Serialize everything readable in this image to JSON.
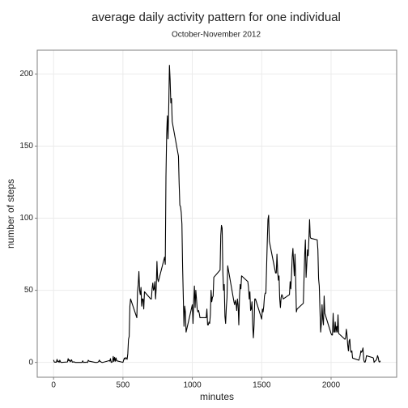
{
  "chart_data": {
    "type": "line",
    "title": "average daily activity pattern for one individual",
    "subtitle": "October-November 2012",
    "xlabel": "minutes",
    "ylabel": "number of steps",
    "x": [
      0,
      5,
      10,
      15,
      20,
      25,
      30,
      35,
      40,
      45,
      50,
      55,
      100,
      105,
      110,
      115,
      120,
      125,
      130,
      135,
      140,
      145,
      150,
      155,
      200,
      205,
      210,
      215,
      220,
      225,
      230,
      235,
      240,
      245,
      250,
      255,
      300,
      305,
      310,
      315,
      320,
      325,
      330,
      335,
      340,
      345,
      350,
      355,
      400,
      405,
      410,
      415,
      420,
      425,
      430,
      435,
      440,
      445,
      450,
      455,
      500,
      505,
      510,
      515,
      520,
      525,
      530,
      535,
      540,
      545,
      550,
      555,
      600,
      605,
      610,
      615,
      620,
      625,
      630,
      635,
      640,
      645,
      650,
      655,
      700,
      705,
      710,
      715,
      720,
      725,
      730,
      735,
      740,
      745,
      750,
      755,
      800,
      805,
      810,
      815,
      820,
      825,
      830,
      835,
      840,
      845,
      850,
      855,
      900,
      905,
      910,
      915,
      920,
      925,
      930,
      935,
      940,
      945,
      950,
      955,
      1000,
      1005,
      1010,
      1015,
      1020,
      1025,
      1030,
      1035,
      1040,
      1045,
      1050,
      1055,
      1100,
      1105,
      1110,
      1115,
      1120,
      1125,
      1130,
      1135,
      1140,
      1145,
      1150,
      1155,
      1200,
      1205,
      1210,
      1215,
      1220,
      1225,
      1230,
      1235,
      1240,
      1245,
      1250,
      1255,
      1300,
      1305,
      1310,
      1315,
      1320,
      1325,
      1330,
      1335,
      1340,
      1345,
      1350,
      1355,
      1400,
      1405,
      1410,
      1415,
      1420,
      1425,
      1430,
      1435,
      1440,
      1445,
      1450,
      1455,
      1500,
      1505,
      1510,
      1515,
      1520,
      1525,
      1530,
      1535,
      1540,
      1545,
      1550,
      1555,
      1600,
      1605,
      1610,
      1615,
      1620,
      1625,
      1630,
      1635,
      1640,
      1645,
      1650,
      1655,
      1700,
      1705,
      1710,
      1715,
      1720,
      1725,
      1730,
      1735,
      1740,
      1745,
      1750,
      1755,
      1800,
      1805,
      1810,
      1815,
      1820,
      1825,
      1830,
      1835,
      1840,
      1845,
      1850,
      1855,
      1900,
      1905,
      1910,
      1915,
      1920,
      1925,
      1930,
      1935,
      1940,
      1945,
      1950,
      1955,
      2000,
      2005,
      2010,
      2015,
      2020,
      2025,
      2030,
      2035,
      2040,
      2045,
      2050,
      2055,
      2100,
      2105,
      2110,
      2115,
      2120,
      2125,
      2130,
      2135,
      2140,
      2145,
      2150,
      2155,
      2200,
      2205,
      2210,
      2215,
      2220,
      2225,
      2230,
      2235,
      2240,
      2245,
      2250,
      2255,
      2300,
      2305,
      2310,
      2315,
      2320,
      2325,
      2330,
      2335,
      2340,
      2345,
      2350,
      2355
    ],
    "series": [
      {
        "color": "#000000",
        "values": [
          1.7,
          0.3,
          0.1,
          0.2,
          0.1,
          2.1,
          0.5,
          0.9,
          0,
          1.5,
          0.3,
          0,
          0.3,
          2.6,
          1.1,
          1.8,
          0.4,
          1.1,
          1.8,
          0.2,
          0.2,
          0.4,
          0.3,
          0,
          0,
          0,
          1.1,
          0,
          0,
          0.1,
          0,
          0.2,
          0,
          0,
          1.5,
          0.9,
          0,
          0,
          0,
          0,
          0.2,
          0.6,
          1.6,
          0.6,
          0.5,
          0.1,
          0,
          0,
          1.2,
          0.9,
          2.6,
          0,
          0.3,
          0.3,
          4.1,
          0.7,
          3.5,
          0.8,
          3.1,
          1.1,
          0,
          1.6,
          3,
          2.2,
          3.3,
          3,
          2.1,
          6,
          16,
          18,
          39,
          44,
          31,
          49,
          54,
          63,
          50,
          47,
          52,
          39,
          44,
          44,
          37,
          49,
          44,
          44,
          51,
          55,
          50,
          51,
          56,
          44,
          52,
          70,
          58,
          56,
          73,
          68,
          129,
          158,
          171,
          155,
          177,
          206,
          196,
          180,
          183,
          167,
          143,
          124,
          109,
          108,
          104,
          96,
          66,
          45,
          25,
          39,
          35,
          21,
          40,
          27,
          42,
          53,
          38,
          50,
          44,
          37,
          35,
          36,
          34,
          31,
          31,
          37,
          26,
          26,
          28,
          27,
          33,
          50,
          42,
          45,
          46,
          59,
          64,
          88,
          95,
          93,
          63,
          50,
          54,
          32,
          27,
          38,
          45,
          67,
          42,
          40,
          43,
          41,
          36,
          44,
          40,
          26,
          46,
          54,
          51,
          60,
          56,
          52,
          44,
          49,
          36,
          37,
          42,
          26,
          17,
          26,
          44,
          44,
          30,
          37,
          35,
          39,
          46,
          48,
          48,
          65,
          83,
          99,
          102,
          84,
          62,
          62,
          75,
          63,
          57,
          60,
          44,
          38,
          45,
          47,
          46,
          44,
          47,
          56,
          51,
          61,
          73,
          79,
          69,
          60,
          75,
          57,
          35,
          37,
          41,
          58,
          75,
          85,
          59,
          68,
          78,
          74,
          85,
          99,
          87,
          86,
          85,
          78,
          58,
          53,
          36,
          21,
          27,
          40,
          30,
          26,
          46,
          34,
          20,
          19,
          19,
          34,
          21,
          21,
          28,
          21,
          25,
          21,
          33,
          20,
          16,
          17,
          23,
          19,
          12,
          8,
          15,
          16,
          8,
          7,
          8,
          3,
          1.5,
          3,
          5,
          8,
          7,
          8,
          10,
          2,
          0.3,
          0.1,
          1.6,
          4.6,
          3.3,
          3,
          0,
          0.8,
          1,
          1.6,
          2.6,
          4.7,
          3.3,
          0.6,
          0.2,
          1.1
        ]
      }
    ],
    "xlim": [
      -117.75,
      2472.75
    ],
    "ylim": [
      -10.3,
      216.5
    ],
    "xticks": [
      0,
      500,
      1000,
      1500,
      2000
    ],
    "yticks": [
      0,
      50,
      100,
      150,
      200
    ],
    "grid": true
  }
}
